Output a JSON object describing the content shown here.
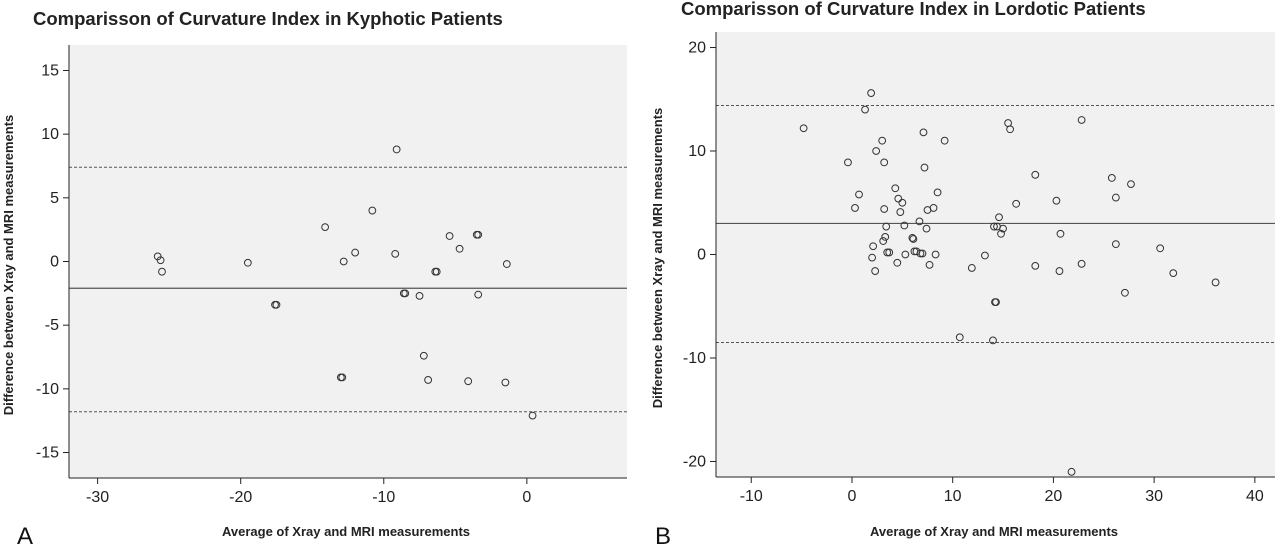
{
  "chart_data": [
    {
      "type": "scatter",
      "title": "Comparisson of Curvature Index in Kyphotic Patients",
      "xlabel": "Average of Xray and MRI measurements",
      "ylabel": "Difference between Xray and MRI measurements",
      "panel_label": "A",
      "xlim": [
        -32,
        7
      ],
      "ylim": [
        -17,
        17
      ],
      "xticks": [
        -30,
        -20,
        -10,
        0
      ],
      "yticks": [
        -15,
        -10,
        -5,
        0,
        5,
        10,
        15
      ],
      "grid": false,
      "reference_lines": {
        "mean": -2.1,
        "upper_loa": 7.4,
        "lower_loa": -11.8
      },
      "points": [
        {
          "x": -25.8,
          "y": 0.4
        },
        {
          "x": -25.6,
          "y": 0.1
        },
        {
          "x": -25.5,
          "y": -0.8
        },
        {
          "x": -19.5,
          "y": -0.1
        },
        {
          "x": -17.6,
          "y": -3.4
        },
        {
          "x": -17.5,
          "y": -3.4
        },
        {
          "x": -14.1,
          "y": 2.7
        },
        {
          "x": -12.8,
          "y": 0.0
        },
        {
          "x": -12.0,
          "y": 0.7
        },
        {
          "x": -10.8,
          "y": 4.0
        },
        {
          "x": -9.1,
          "y": 8.8
        },
        {
          "x": -9.2,
          "y": 0.6
        },
        {
          "x": -13.0,
          "y": -9.1
        },
        {
          "x": -12.9,
          "y": -9.1
        },
        {
          "x": -8.6,
          "y": -2.5
        },
        {
          "x": -8.5,
          "y": -2.5
        },
        {
          "x": -7.5,
          "y": -2.7
        },
        {
          "x": -7.2,
          "y": -7.4
        },
        {
          "x": -6.9,
          "y": -9.3
        },
        {
          "x": -6.4,
          "y": -0.8
        },
        {
          "x": -6.3,
          "y": -0.8
        },
        {
          "x": -5.4,
          "y": 2.0
        },
        {
          "x": -4.7,
          "y": 1.0
        },
        {
          "x": -4.1,
          "y": -9.4
        },
        {
          "x": -3.5,
          "y": 2.1
        },
        {
          "x": -3.4,
          "y": 2.1
        },
        {
          "x": -3.4,
          "y": -2.6
        },
        {
          "x": -1.4,
          "y": -0.2
        },
        {
          "x": -1.5,
          "y": -9.5
        },
        {
          "x": 0.4,
          "y": -12.1
        }
      ]
    },
    {
      "type": "scatter",
      "title": "Comparisson of Curvature Index in Lordotic Patients",
      "xlabel": "Average of Xray and MRI measurements",
      "ylabel": "Difference between Xray and MRI measurements",
      "panel_label": "B",
      "xlim": [
        -13.5,
        42
      ],
      "ylim": [
        -21.5,
        21.5
      ],
      "xticks": [
        -10,
        0,
        10,
        20,
        30,
        40
      ],
      "yticks": [
        -20,
        -10,
        0,
        10,
        20
      ],
      "grid": false,
      "reference_lines": {
        "mean": 3.0,
        "upper_loa": 14.4,
        "lower_loa": -8.5
      },
      "points": [
        {
          "x": -4.8,
          "y": 12.2
        },
        {
          "x": -0.4,
          "y": 8.9
        },
        {
          "x": 0.3,
          "y": 4.5
        },
        {
          "x": 0.7,
          "y": 5.8
        },
        {
          "x": 1.3,
          "y": 14.0
        },
        {
          "x": 1.9,
          "y": 15.6
        },
        {
          "x": 2.0,
          "y": -0.3
        },
        {
          "x": 2.1,
          "y": 0.8
        },
        {
          "x": 2.3,
          "y": -1.6
        },
        {
          "x": 2.4,
          "y": 10.0
        },
        {
          "x": 3.0,
          "y": 11.0
        },
        {
          "x": 3.1,
          "y": 1.3
        },
        {
          "x": 3.2,
          "y": 4.4
        },
        {
          "x": 3.2,
          "y": 8.9
        },
        {
          "x": 3.3,
          "y": 1.7
        },
        {
          "x": 3.4,
          "y": 2.7
        },
        {
          "x": 3.5,
          "y": 0.2
        },
        {
          "x": 3.7,
          "y": 0.2
        },
        {
          "x": 4.3,
          "y": 6.4
        },
        {
          "x": 4.5,
          "y": -0.8
        },
        {
          "x": 4.6,
          "y": 5.4
        },
        {
          "x": 4.8,
          "y": 4.1
        },
        {
          "x": 5.0,
          "y": 5.0
        },
        {
          "x": 5.2,
          "y": 2.8
        },
        {
          "x": 5.3,
          "y": 0.0
        },
        {
          "x": 6.0,
          "y": 1.6
        },
        {
          "x": 6.1,
          "y": 1.5
        },
        {
          "x": 6.2,
          "y": 0.3
        },
        {
          "x": 6.4,
          "y": 0.3
        },
        {
          "x": 6.7,
          "y": 3.2
        },
        {
          "x": 6.8,
          "y": 0.1
        },
        {
          "x": 7.0,
          "y": 0.1
        },
        {
          "x": 7.1,
          "y": 11.8
        },
        {
          "x": 7.2,
          "y": 8.4
        },
        {
          "x": 7.4,
          "y": 2.5
        },
        {
          "x": 7.5,
          "y": 4.3
        },
        {
          "x": 7.7,
          "y": -1.0
        },
        {
          "x": 8.1,
          "y": 4.5
        },
        {
          "x": 8.3,
          "y": 0.0
        },
        {
          "x": 8.5,
          "y": 6.0
        },
        {
          "x": 9.2,
          "y": 11.0
        },
        {
          "x": 10.7,
          "y": -8.0
        },
        {
          "x": 11.9,
          "y": -1.3
        },
        {
          "x": 13.2,
          "y": -0.1
        },
        {
          "x": 14.0,
          "y": -8.3
        },
        {
          "x": 14.2,
          "y": -4.6
        },
        {
          "x": 14.3,
          "y": -4.6
        },
        {
          "x": 14.1,
          "y": 2.7
        },
        {
          "x": 14.4,
          "y": 2.7
        },
        {
          "x": 14.6,
          "y": 3.6
        },
        {
          "x": 14.8,
          "y": 2.0
        },
        {
          "x": 15.0,
          "y": 2.5
        },
        {
          "x": 15.5,
          "y": 12.7
        },
        {
          "x": 15.7,
          "y": 12.1
        },
        {
          "x": 16.3,
          "y": 4.9
        },
        {
          "x": 18.2,
          "y": 7.7
        },
        {
          "x": 18.2,
          "y": -1.1
        },
        {
          "x": 20.3,
          "y": 5.2
        },
        {
          "x": 20.6,
          "y": -1.6
        },
        {
          "x": 20.7,
          "y": 2.0
        },
        {
          "x": 21.8,
          "y": -21.0
        },
        {
          "x": 22.8,
          "y": 13.0
        },
        {
          "x": 22.8,
          "y": -0.9
        },
        {
          "x": 25.8,
          "y": 7.4
        },
        {
          "x": 26.2,
          "y": 5.5
        },
        {
          "x": 26.2,
          "y": 1.0
        },
        {
          "x": 27.1,
          "y": -3.7
        },
        {
          "x": 27.7,
          "y": 6.8
        },
        {
          "x": 30.6,
          "y": 0.6
        },
        {
          "x": 31.9,
          "y": -1.8
        },
        {
          "x": 36.1,
          "y": -2.7
        }
      ]
    }
  ],
  "colors": {
    "plot_background": "#f1f1f1",
    "marker_stroke": "#333333",
    "line": "#555555",
    "axis": "#222222"
  }
}
